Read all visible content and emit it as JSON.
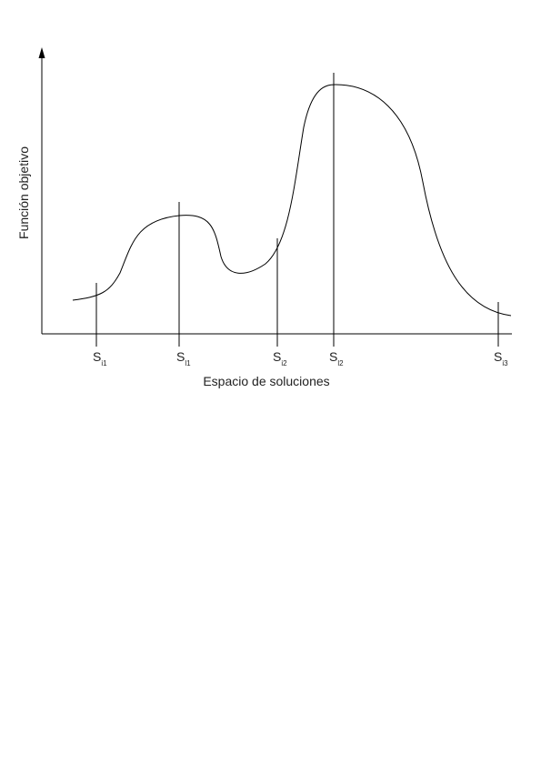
{
  "axes": {
    "y_label": "Función objetivo",
    "x_label": "Espacio de soluciones"
  },
  "markers": [
    {
      "id": "si1",
      "main": "S",
      "sub": "i1"
    },
    {
      "id": "sl1",
      "main": "S",
      "sub": "l1"
    },
    {
      "id": "si2",
      "main": "S",
      "sub": "i2"
    },
    {
      "id": "sl2",
      "main": "S",
      "sub": "l2"
    },
    {
      "id": "si3",
      "main": "S",
      "sub": "i3"
    }
  ],
  "colors": {
    "line": "#000000",
    "text": "#222222"
  }
}
